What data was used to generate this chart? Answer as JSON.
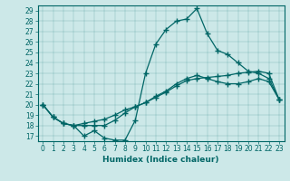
{
  "title": "",
  "xlabel": "Humidex (Indice chaleur)",
  "bg_color": "#cce8e8",
  "line_color": "#006666",
  "xlim": [
    -0.5,
    23.5
  ],
  "ylim": [
    16.5,
    29.5
  ],
  "yticks": [
    17,
    18,
    19,
    20,
    21,
    22,
    23,
    24,
    25,
    26,
    27,
    28,
    29
  ],
  "xticks": [
    0,
    1,
    2,
    3,
    4,
    5,
    6,
    7,
    8,
    9,
    10,
    11,
    12,
    13,
    14,
    15,
    16,
    17,
    18,
    19,
    20,
    21,
    22,
    23
  ],
  "line1_x": [
    0,
    1,
    2,
    3,
    4,
    5,
    6,
    7,
    8,
    9,
    10,
    11,
    12,
    13,
    14,
    15,
    16,
    17,
    18,
    19,
    20,
    21,
    22,
    23
  ],
  "line1_y": [
    20.0,
    18.8,
    18.2,
    18.0,
    17.0,
    17.5,
    16.8,
    16.6,
    16.6,
    18.5,
    23.0,
    25.8,
    27.2,
    28.0,
    28.2,
    29.2,
    26.8,
    25.2,
    24.8,
    24.0,
    23.2,
    23.0,
    22.5,
    20.5
  ],
  "line2_x": [
    0,
    1,
    2,
    3,
    4,
    5,
    6,
    7,
    8,
    9,
    10,
    11,
    12,
    13,
    14,
    15,
    16,
    17,
    18,
    19,
    20,
    21,
    22,
    23
  ],
  "line2_y": [
    20.0,
    18.8,
    18.2,
    18.0,
    18.0,
    18.0,
    18.0,
    18.5,
    19.2,
    19.8,
    20.2,
    20.7,
    21.2,
    21.8,
    22.3,
    22.5,
    22.6,
    22.7,
    22.8,
    23.0,
    23.1,
    23.2,
    23.0,
    20.5
  ],
  "line3_x": [
    0,
    1,
    2,
    3,
    4,
    5,
    6,
    7,
    8,
    9,
    10,
    11,
    12,
    13,
    14,
    15,
    16,
    17,
    18,
    19,
    20,
    21,
    22,
    23
  ],
  "line3_y": [
    20.0,
    18.8,
    18.2,
    18.0,
    18.2,
    18.4,
    18.6,
    19.0,
    19.5,
    19.8,
    20.2,
    20.8,
    21.3,
    22.0,
    22.5,
    22.8,
    22.5,
    22.2,
    22.0,
    22.0,
    22.2,
    22.5,
    22.2,
    20.5
  ],
  "marker": "+",
  "markersize": 4,
  "markeredgewidth": 1.0,
  "linewidth": 0.9,
  "tick_labelsize": 5.5,
  "xlabel_fontsize": 6.5
}
